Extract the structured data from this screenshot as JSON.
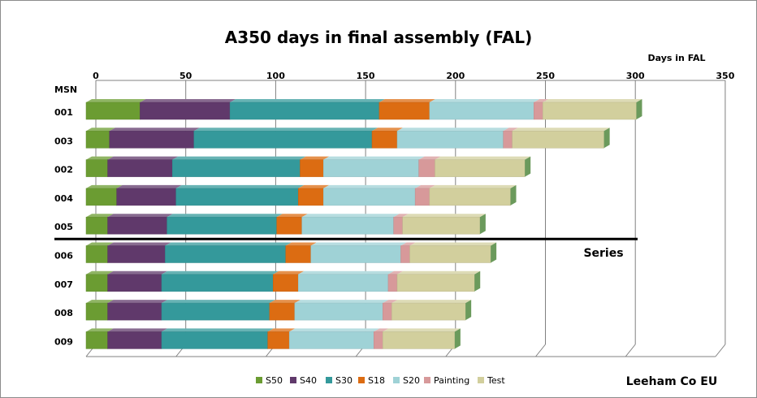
{
  "chart_data": {
    "type": "bar",
    "orientation": "horizontal",
    "stacked": true,
    "title": "A350 days in final assembly (FAL)",
    "xlabel": "Days in FAL",
    "ylabel": "MSN",
    "xlim": [
      0,
      350
    ],
    "xticks": [
      0,
      50,
      100,
      150,
      200,
      250,
      300,
      350
    ],
    "grid": true,
    "legend_position": "bottom",
    "categories": [
      "001",
      "003",
      "002",
      "004",
      "005",
      "006",
      "007",
      "008",
      "009"
    ],
    "series": [
      {
        "name": "S50",
        "color": "#6b9c32",
        "values": [
          30,
          13,
          12,
          17,
          12,
          12,
          12,
          12,
          12
        ]
      },
      {
        "name": "S40",
        "color": "#60396b",
        "values": [
          50,
          47,
          36,
          33,
          33,
          32,
          30,
          30,
          30
        ]
      },
      {
        "name": "S30",
        "color": "#34999b",
        "values": [
          83,
          99,
          71,
          68,
          61,
          67,
          62,
          60,
          59
        ]
      },
      {
        "name": "S18",
        "color": "#dc6c12",
        "values": [
          28,
          14,
          13,
          14,
          14,
          14,
          14,
          14,
          12
        ]
      },
      {
        "name": "S20",
        "color": "#9fd2d6",
        "values": [
          58,
          59,
          53,
          51,
          51,
          50,
          50,
          49,
          47
        ]
      },
      {
        "name": "Painting",
        "color": "#d7999a",
        "values": [
          5,
          5,
          9,
          8,
          5,
          5,
          5,
          5,
          5
        ]
      },
      {
        "name": "Test",
        "color": "#d2cf9d",
        "values": [
          52,
          51,
          50,
          45,
          43,
          45,
          43,
          41,
          40
        ]
      }
    ],
    "annotations": [
      {
        "text": "Series",
        "between": [
          "005",
          "006"
        ]
      }
    ]
  },
  "credit": "Leeham Co EU"
}
